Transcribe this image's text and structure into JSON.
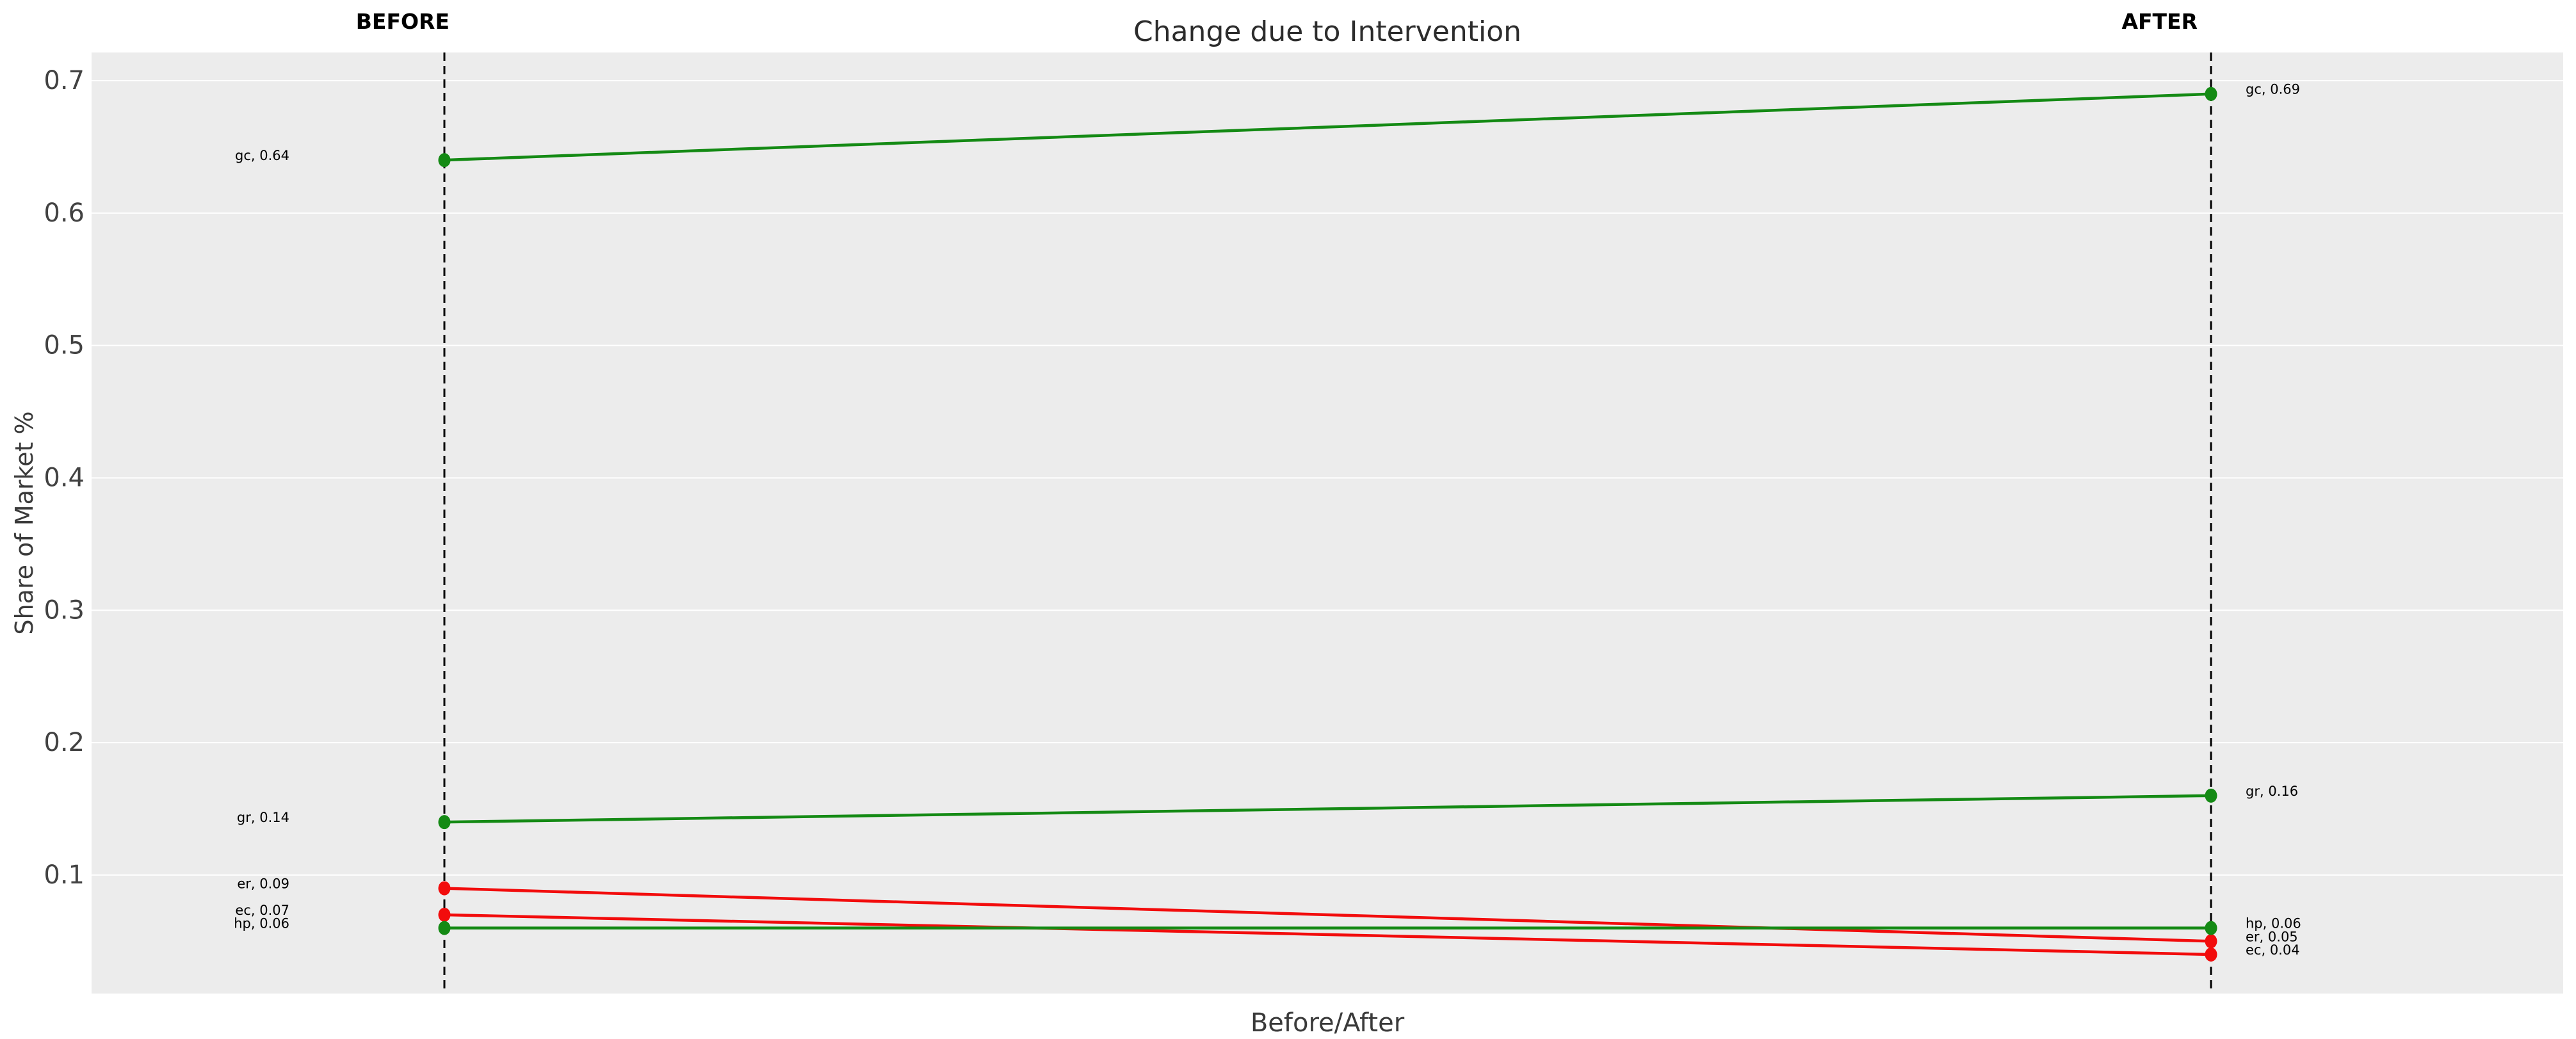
{
  "title": "Change due to Intervention",
  "axes": {
    "x_label": "Before/After",
    "y_label": "Share of Market %"
  },
  "column_headers": {
    "before": "BEFORE",
    "after": "AFTER"
  },
  "chart_data": {
    "type": "line",
    "subtype": "slopegraph",
    "categories": [
      "BEFORE",
      "AFTER"
    ],
    "series": [
      {
        "name": "gc",
        "values": [
          0.64,
          0.69
        ],
        "trend": "increase",
        "color": "#148a14"
      },
      {
        "name": "gr",
        "values": [
          0.14,
          0.16
        ],
        "trend": "increase",
        "color": "#148a14"
      },
      {
        "name": "er",
        "values": [
          0.09,
          0.05
        ],
        "trend": "decrease",
        "color": "#f20c0c"
      },
      {
        "name": "ec",
        "values": [
          0.07,
          0.04
        ],
        "trend": "decrease",
        "color": "#f20c0c"
      },
      {
        "name": "hp",
        "values": [
          0.06,
          0.06
        ],
        "trend": "no-change",
        "color": "#148a14"
      }
    ],
    "point_labels": {
      "before": [
        "gc, 0.64",
        "gr, 0.14",
        "er, 0.09",
        "ec, 0.07",
        "hp, 0.06"
      ],
      "after": [
        "gc, 0.69",
        "gr, 0.16",
        "er, 0.05",
        "ec, 0.04",
        "hp, 0.06"
      ]
    },
    "yticks": [
      "0.1",
      "0.2",
      "0.3",
      "0.4",
      "0.5",
      "0.6",
      "0.7"
    ],
    "ylim": [
      0.0105,
      0.7213
    ],
    "grid": "horizontal-white-on-gray",
    "legend": "none",
    "vertical_guides": [
      "BEFORE",
      "AFTER"
    ]
  },
  "colors": {
    "increase": "#148a14",
    "decrease": "#f20c0c",
    "plot_background": "#ececec",
    "figure_background": "#ffffff",
    "gridline": "#ffffff",
    "guide_line": "#000000",
    "tick_label": "#424242",
    "point_label": "#000000"
  }
}
